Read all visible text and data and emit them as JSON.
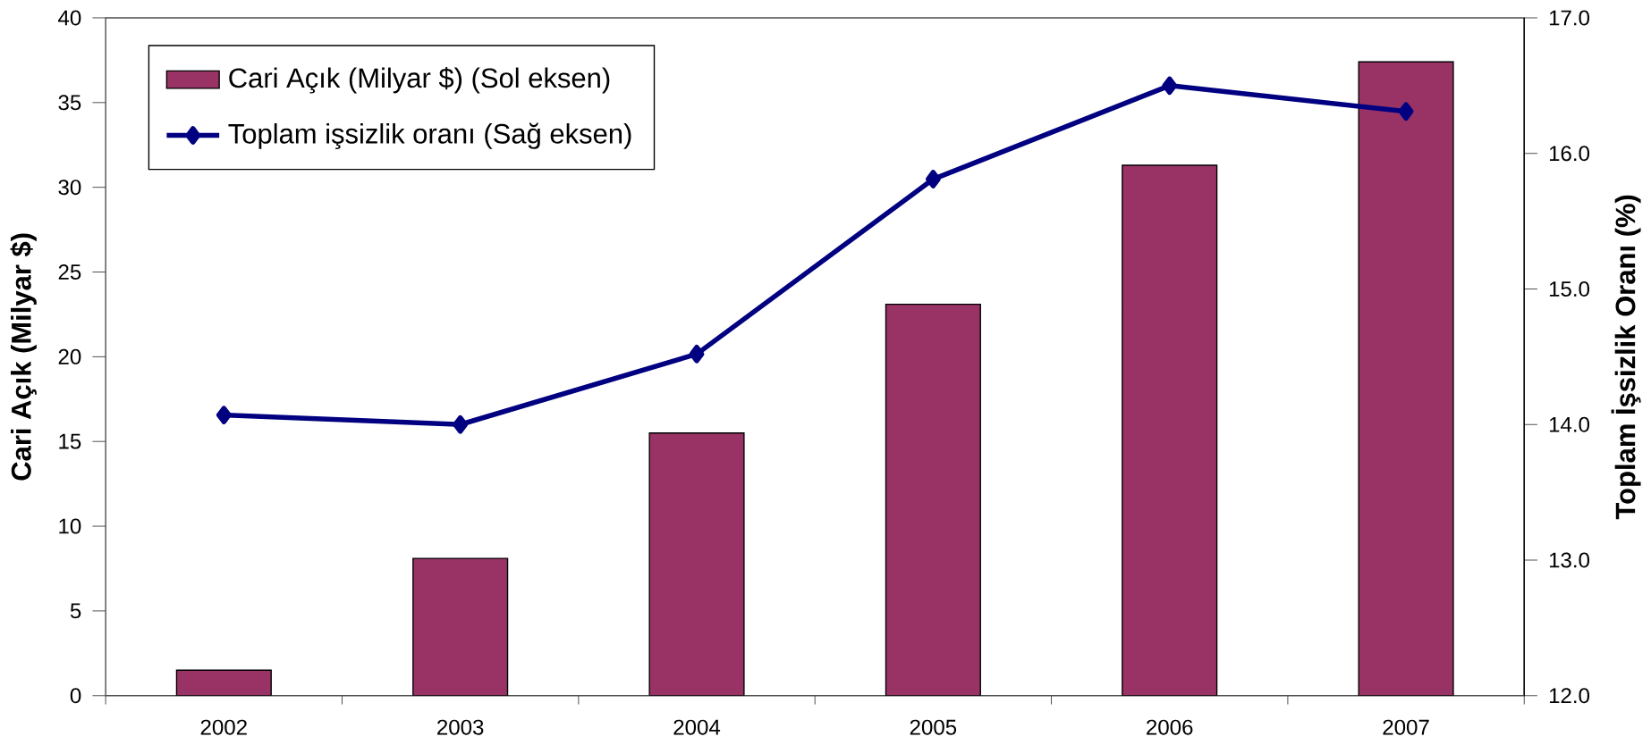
{
  "chart_data": {
    "type": "bar",
    "ylabel": "Cari Açık (Milyar $)",
    "y2label": "Toplam İşsizlik Oranı (%)",
    "categories": [
      "2002",
      "2003",
      "2004",
      "2005",
      "2006",
      "2007"
    ],
    "series": [
      {
        "name": "Cari Açık (Milyar $) (Sol eksen)",
        "color": "#993366",
        "values": [
          1.5,
          8.1,
          15.5,
          23.1,
          31.3,
          37.4
        ]
      },
      {
        "name": "Toplam işsizlik oranı (Sağ eksen)",
        "type": "line",
        "axis": "y2",
        "color": "#000080",
        "marker": "diamond",
        "values": [
          14.07,
          14.0,
          14.52,
          15.81,
          16.5,
          16.31
        ]
      }
    ],
    "ylim": [
      0,
      40
    ],
    "yticks": [
      0,
      5,
      10,
      15,
      20,
      25,
      30,
      35,
      40
    ],
    "y2lim": [
      12,
      17
    ],
    "y2ticks": [
      {
        "value": 12,
        "label": "12.0"
      },
      {
        "value": 13,
        "label": "13.0"
      },
      {
        "value": 14,
        "label": "14.0"
      },
      {
        "value": 15,
        "label": "15.0"
      },
      {
        "value": 16,
        "label": "16.0"
      },
      {
        "value": 17,
        "label": "17.0"
      }
    ],
    "grid": false,
    "legend": "top left"
  }
}
